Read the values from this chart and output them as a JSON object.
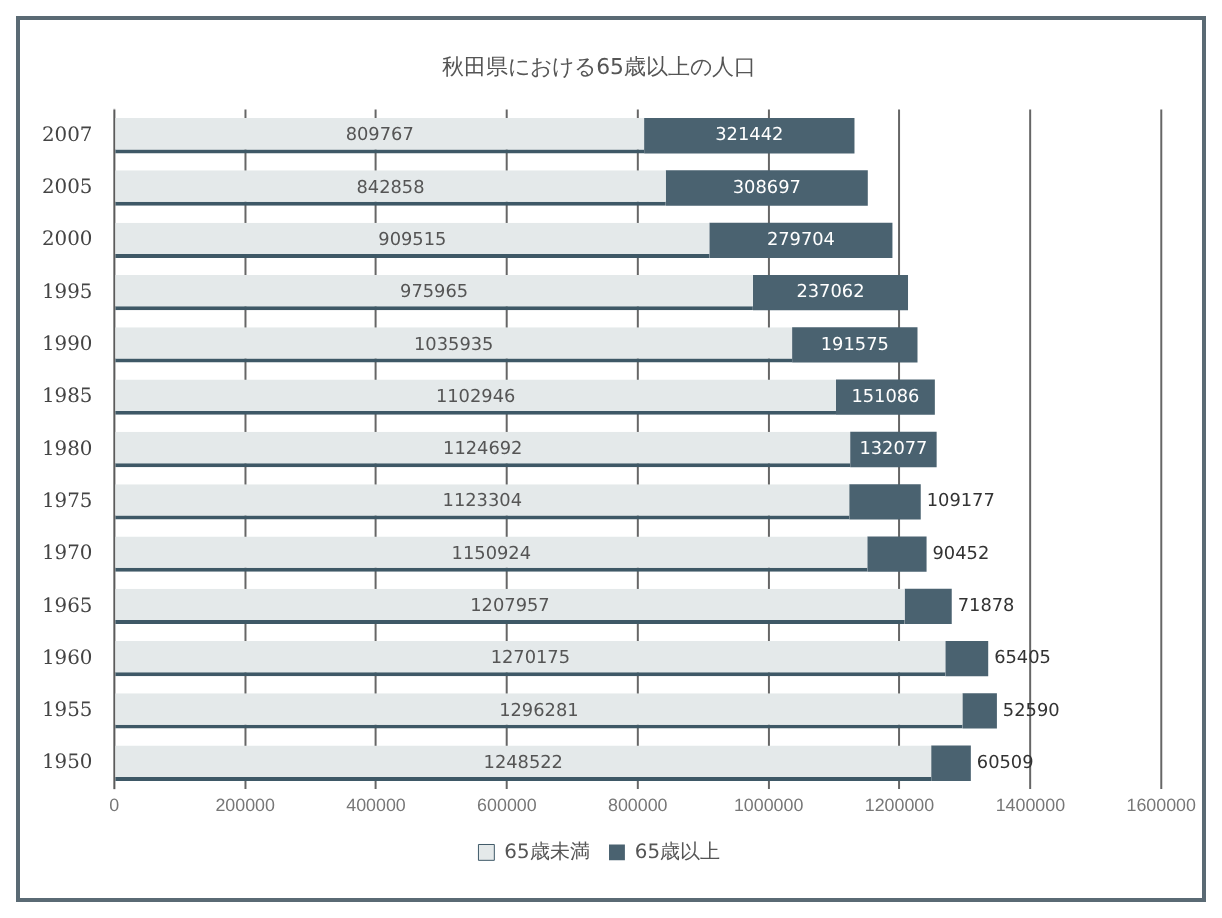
{
  "chart_data": {
    "type": "bar",
    "title": "秋田県における65歳以上の人口",
    "orientation": "horizontal",
    "stacked": true,
    "categories": [
      "2007",
      "2005",
      "2000",
      "1995",
      "1990",
      "1985",
      "1980",
      "1975",
      "1970",
      "1965",
      "1960",
      "1955",
      "1950"
    ],
    "series": [
      {
        "name": "65歳未満",
        "color": "#e4e9ea",
        "values": [
          809767,
          842858,
          909515,
          975965,
          1035935,
          1102946,
          1124692,
          1123304,
          1150924,
          1207957,
          1270175,
          1296281,
          1248522
        ]
      },
      {
        "name": "65歳以上",
        "color": "#4a6270",
        "values": [
          321442,
          308697,
          279704,
          237062,
          191575,
          151086,
          132077,
          109177,
          90452,
          71878,
          65405,
          52590,
          60509
        ]
      }
    ],
    "xlim": [
      0,
      1600000
    ],
    "xticks": [
      0,
      200000,
      400000,
      600000,
      800000,
      1000000,
      1200000,
      1400000,
      1600000
    ],
    "grid": "x",
    "legend": "bottom",
    "data_labels": true
  }
}
